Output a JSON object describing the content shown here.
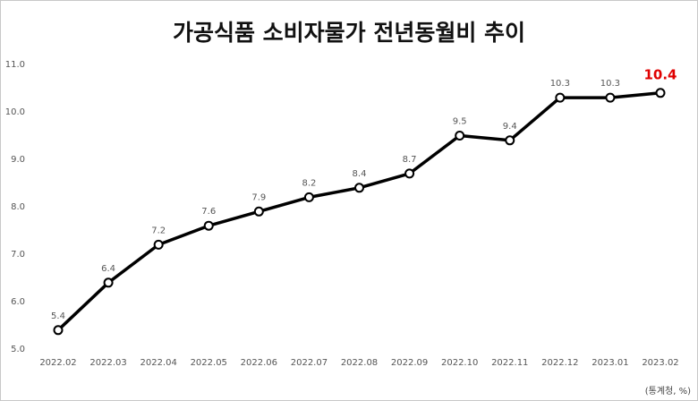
{
  "chart_data": {
    "type": "line",
    "title": "가공식품 소비자물가 전년동월비 추이",
    "source": "(통계청, %)",
    "categories": [
      "2022.02",
      "2022.03",
      "2022.04",
      "2022.05",
      "2022.06",
      "2022.07",
      "2022.08",
      "2022.09",
      "2022.10",
      "2022.11",
      "2022.12",
      "2023.01",
      "2023.02"
    ],
    "series": [
      {
        "name": "가공식품 소비자물가 전년동월비",
        "color": "#000000",
        "values": [
          5.4,
          6.4,
          7.2,
          7.6,
          7.9,
          8.2,
          8.4,
          8.7,
          9.5,
          9.4,
          10.3,
          10.3,
          10.4
        ]
      }
    ],
    "highlight_color": "#e00000",
    "ylim": [
      5,
      11
    ],
    "yticks": [
      {
        "value": 5,
        "label": "5.0"
      },
      {
        "value": 6,
        "label": "6.0"
      },
      {
        "value": 7,
        "label": "7.0"
      },
      {
        "value": 8,
        "label": "8.0"
      },
      {
        "value": 9,
        "label": "9.0"
      },
      {
        "value": 10,
        "label": "10.0"
      },
      {
        "value": 11,
        "label": "11.0"
      }
    ],
    "grid": false
  }
}
